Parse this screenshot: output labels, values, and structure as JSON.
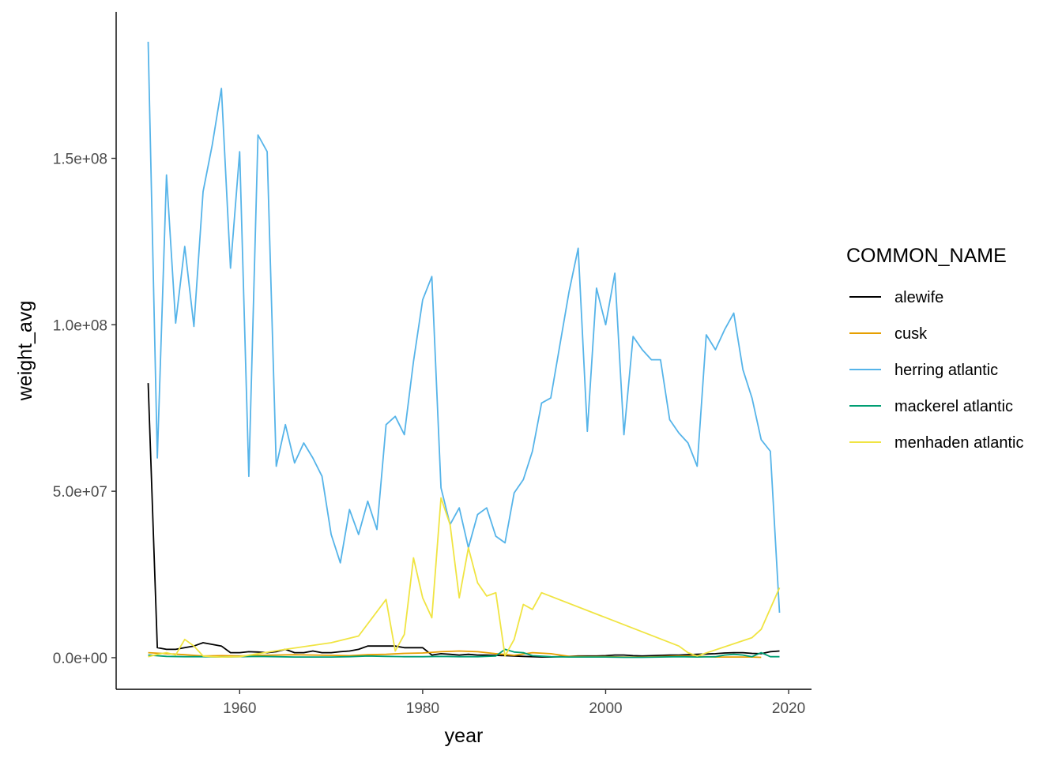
{
  "chart_data": {
    "type": "line",
    "title": "",
    "xlabel": "year",
    "ylabel": "weight_avg",
    "xlim": [
      1946.5,
      2022.5
    ],
    "ylim": [
      -9500000,
      194000000
    ],
    "x_ticks": [
      1960,
      1980,
      2000,
      2020
    ],
    "x_tick_labels": [
      "1960",
      "1980",
      "2000",
      "2020"
    ],
    "y_ticks": [
      0,
      50000000,
      100000000,
      150000000
    ],
    "y_tick_labels": [
      "0.0e+00",
      "5.0e+07",
      "1.0e+08",
      "1.5e+08"
    ],
    "grid": false,
    "legend": {
      "title": "COMMON_NAME",
      "position": "right"
    },
    "series": [
      {
        "name": "herring atlantic",
        "color": "#56B4E9",
        "x": [
          1950,
          1951,
          1952,
          1953,
          1954,
          1955,
          1956,
          1957,
          1958,
          1959,
          1960,
          1961,
          1962,
          1963,
          1964,
          1965,
          1966,
          1967,
          1968,
          1969,
          1970,
          1971,
          1972,
          1973,
          1974,
          1975,
          1976,
          1977,
          1978,
          1979,
          1980,
          1981,
          1982,
          1983,
          1984,
          1985,
          1986,
          1987,
          1988,
          1989,
          1990,
          1991,
          1992,
          1993,
          1994,
          1995,
          1996,
          1997,
          1998,
          1999,
          2000,
          2001,
          2002,
          2003,
          2004,
          2005,
          2006,
          2007,
          2008,
          2009,
          2010,
          2011,
          2012,
          2013,
          2014,
          2015,
          2016,
          2017,
          2018,
          2019
        ],
        "y": [
          185000000,
          60000000,
          145000000,
          100500000,
          123500000,
          99500000,
          140000000,
          154000000,
          171000000,
          117000000,
          152000000,
          54500000,
          157000000,
          152000000,
          57500000,
          70000000,
          58500000,
          64500000,
          60000000,
          54500000,
          37000000,
          28500000,
          44500000,
          37000000,
          47000000,
          38500000,
          70000000,
          72500000,
          67000000,
          89000000,
          107500000,
          114500000,
          51000000,
          40000000,
          45000000,
          33000000,
          43000000,
          45000000,
          36500000,
          34500000,
          49500000,
          53500000,
          62000000,
          76500000,
          78000000,
          94000000,
          110000000,
          123000000,
          68000000,
          111000000,
          100000000,
          115500000,
          67000000,
          96500000,
          92500000,
          89500000,
          89500000,
          71500000,
          67500000,
          64500000,
          57500000,
          97000000,
          92500000,
          98500000,
          103500000,
          86500000,
          78000000,
          65500000,
          62000000,
          13500000
        ]
      },
      {
        "name": "alewife",
        "color": "#000000",
        "x": [
          1950,
          1951,
          1952,
          1953,
          1954,
          1955,
          1956,
          1957,
          1958,
          1959,
          1960,
          1961,
          1962,
          1963,
          1964,
          1965,
          1966,
          1967,
          1968,
          1969,
          1970,
          1971,
          1972,
          1973,
          1974,
          1975,
          1976,
          1977,
          1978,
          1979,
          1980,
          1981,
          1982,
          1983,
          1984,
          1985,
          1986,
          1987,
          1988,
          1989,
          1990,
          1991,
          1992,
          1993,
          1994,
          1995,
          1996,
          1997,
          1998,
          1999,
          2000,
          2001,
          2002,
          2003,
          2004,
          2005,
          2006,
          2007,
          2008,
          2009,
          2010,
          2011,
          2012,
          2013,
          2014,
          2015,
          2016,
          2017,
          2018,
          2019
        ],
        "y": [
          82500000,
          3000000,
          2500000,
          2500000,
          3000000,
          3500000,
          4500000,
          4000000,
          3500000,
          1500000,
          1500000,
          1800000,
          1700000,
          1500000,
          1800000,
          2500000,
          1500000,
          1500000,
          2000000,
          1500000,
          1500000,
          1800000,
          2000000,
          2500000,
          3500000,
          3500000,
          3500000,
          3500000,
          3000000,
          3000000,
          3000000,
          800000,
          1200000,
          1000000,
          800000,
          1000000,
          800000,
          800000,
          700000,
          600000,
          500000,
          400000,
          300000,
          200000,
          200000,
          300000,
          400000,
          500000,
          500000,
          500000,
          600000,
          800000,
          800000,
          600000,
          500000,
          600000,
          700000,
          800000,
          800000,
          900000,
          1000000,
          1100000,
          1200000,
          1400000,
          1500000,
          1500000,
          1300000,
          1200000,
          1800000,
          2000000
        ]
      },
      {
        "name": "cusk",
        "color": "#E69F00",
        "x": [
          1950,
          1952,
          1954,
          1956,
          1958,
          1960,
          1962,
          1964,
          1966,
          1968,
          1970,
          1972,
          1974,
          1976,
          1978,
          1980,
          1982,
          1984,
          1986,
          1988,
          1990,
          1992,
          1994,
          1996,
          1998,
          2000,
          2002,
          2004,
          2006,
          2008,
          2010,
          2012,
          2014,
          2016,
          2017
        ],
        "y": [
          1500000,
          1200000,
          900000,
          500000,
          600000,
          500000,
          700000,
          800000,
          900000,
          800000,
          700000,
          600000,
          900000,
          1000000,
          1300000,
          1400000,
          1800000,
          2000000,
          1800000,
          1200000,
          700000,
          1500000,
          1200000,
          400000,
          300000,
          300000,
          200000,
          200000,
          300000,
          500000,
          400000,
          200000,
          200000,
          200000,
          100000
        ]
      },
      {
        "name": "mackerel atlantic",
        "color": "#009E73",
        "x": [
          1950,
          1952,
          1954,
          1956,
          1958,
          1960,
          1962,
          1964,
          1966,
          1968,
          1970,
          1972,
          1974,
          1976,
          1978,
          1980,
          1982,
          1984,
          1986,
          1988,
          1989,
          1990,
          1991,
          1992,
          1994,
          1996,
          1998,
          2000,
          2002,
          2004,
          2006,
          2008,
          2010,
          2012,
          2013,
          2014,
          2015,
          2016,
          2017,
          2018,
          2019
        ],
        "y": [
          800000,
          400000,
          300000,
          300000,
          200000,
          300000,
          400000,
          300000,
          200000,
          200000,
          200000,
          300000,
          500000,
          400000,
          300000,
          300000,
          400000,
          300000,
          300000,
          500000,
          2500000,
          1700000,
          1500000,
          600000,
          300000,
          200000,
          200000,
          200000,
          100000,
          100000,
          200000,
          300000,
          200000,
          300000,
          800000,
          1000000,
          800000,
          300000,
          1500000,
          300000,
          300000
        ]
      },
      {
        "name": "menhaden atlantic",
        "color": "#F0E442",
        "x": [
          1950,
          1951,
          1952,
          1953,
          1954,
          1955,
          1956,
          1957,
          1958,
          1960,
          1965,
          1970,
          1973,
          1976,
          1977,
          1978,
          1979,
          1980,
          1981,
          1982,
          1983,
          1984,
          1985,
          1986,
          1987,
          1988,
          1989,
          1990,
          1991,
          1992,
          1993,
          2008,
          2009,
          2010,
          2016,
          2017,
          2019
        ],
        "y": [
          300000,
          1000000,
          1500000,
          800000,
          5500000,
          3500000,
          500000,
          300000,
          200000,
          300000,
          2500000,
          4500000,
          6500000,
          17500000,
          2000000,
          7000000,
          30000000,
          18000000,
          12000000,
          48000000,
          40000000,
          18000000,
          33000000,
          22500000,
          18500000,
          19500000,
          500000,
          5500000,
          16000000,
          14500000,
          19500000,
          3500000,
          1500000,
          500000,
          6000000,
          8500000,
          21000000
        ]
      }
    ]
  }
}
